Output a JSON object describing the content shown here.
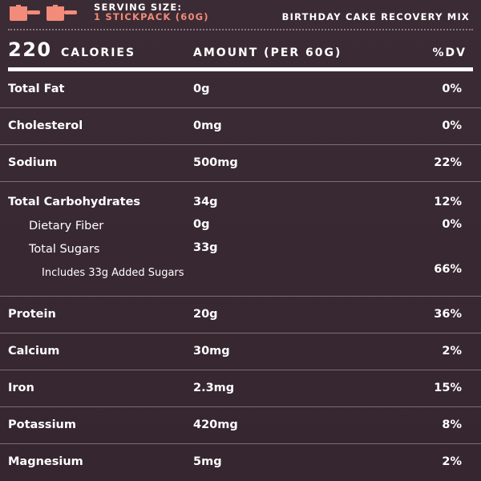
{
  "header": {
    "serving_label": "SERVING SIZE:",
    "serving_value": "1 STICKPACK (60G)",
    "product_name": "BIRTHDAY CAKE RECOVERY MIX",
    "scoop_icon_color": "#f28b7a"
  },
  "calories": {
    "value": "220",
    "label": "CALORIES",
    "amount_header": "AMOUNT (PER 60G)",
    "dv_header": "%DV"
  },
  "nutrients": [
    {
      "name": "Total Fat",
      "amount": "0g",
      "dv": "0%"
    },
    {
      "name": "Cholesterol",
      "amount": "0mg",
      "dv": "0%"
    },
    {
      "name": "Sodium",
      "amount": "500mg",
      "dv": "22%"
    }
  ],
  "carbs": {
    "name": "Total Carbohydrates",
    "amount": "34g",
    "dv": "12%",
    "fiber": {
      "name": "Dietary Fiber",
      "amount": "0g",
      "dv": "0%"
    },
    "sugars": {
      "name": "Total Sugars",
      "amount": "33g"
    },
    "added": {
      "name": "Includes 33g Added Sugars",
      "dv": "66%"
    }
  },
  "minerals": [
    {
      "name": "Protein",
      "amount": "20g",
      "dv": "36%"
    },
    {
      "name": "Calcium",
      "amount": "30mg",
      "dv": "2%"
    },
    {
      "name": "Iron",
      "amount": "2.3mg",
      "dv": "15%"
    },
    {
      "name": "Potassium",
      "amount": "420mg",
      "dv": "8%"
    },
    {
      "name": "Magnesium",
      "amount": "5mg",
      "dv": "2%"
    }
  ]
}
